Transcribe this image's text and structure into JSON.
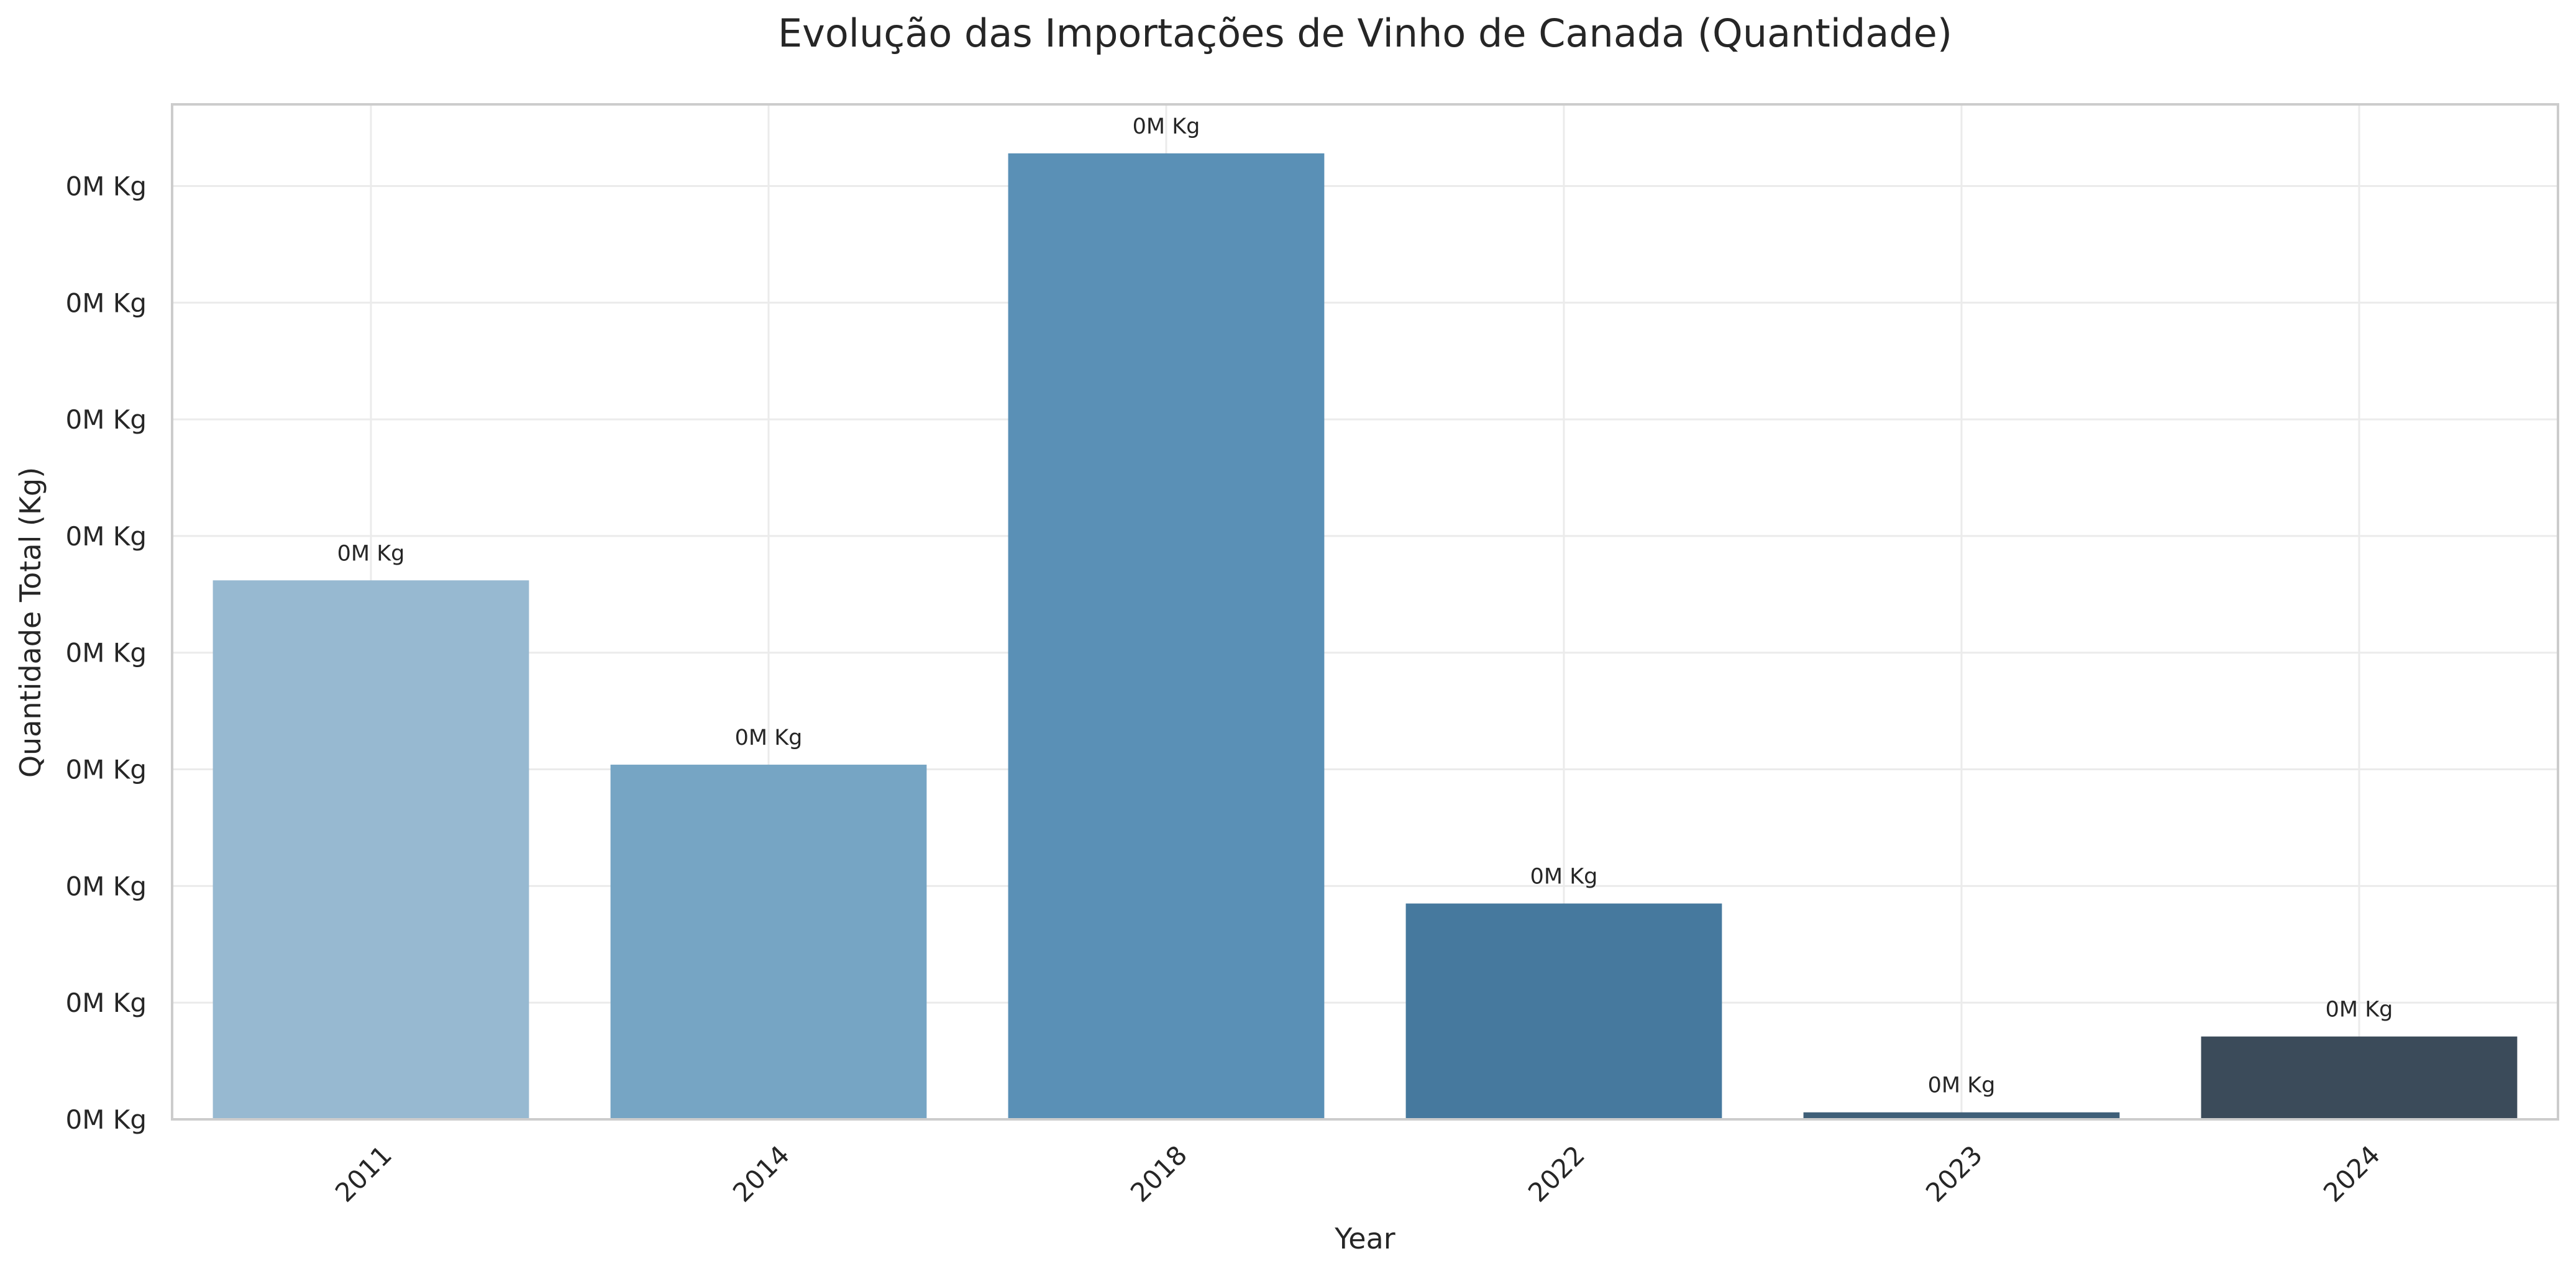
{
  "chart_data": {
    "type": "bar",
    "title": "Evolução das Importações de Vinho de Canada (Quantidade)",
    "xlabel": "Year",
    "ylabel": "Quantidade Total (Kg)",
    "categories": [
      "2011",
      "2014",
      "2018",
      "2022",
      "2023",
      "2024"
    ],
    "values": [
      0.000231,
      0.000152,
      0.000414,
      9.25e-05,
      3e-06,
      3.55e-05
    ],
    "bar_labels": [
      "0M Kg",
      "0M Kg",
      "0M Kg",
      "0M Kg",
      "0M Kg",
      "0M Kg"
    ],
    "ylim": [
      0,
      0.000435
    ],
    "yticks": [
      0,
      5e-05,
      0.0001,
      0.00015,
      0.0002,
      0.00025,
      0.0003,
      0.00035,
      0.0004
    ],
    "ytick_labels": [
      "0M Kg",
      "0M Kg",
      "0M Kg",
      "0M Kg",
      "0M Kg",
      "0M Kg",
      "0M Kg",
      "0M Kg",
      "0M Kg"
    ],
    "colors": [
      "#97b9d1",
      "#76a5c4",
      "#5a90b6",
      "#46799e",
      "#3f5f78",
      "#3b4b5a"
    ],
    "grid": true,
    "legend": "none"
  }
}
